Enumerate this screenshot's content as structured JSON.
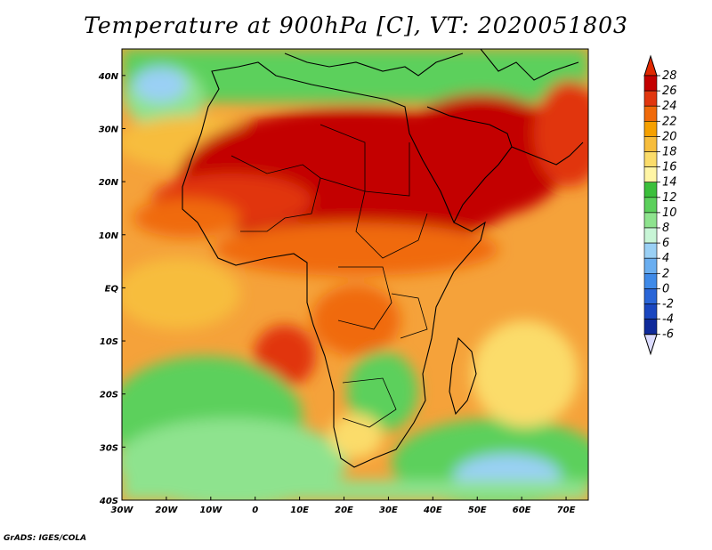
{
  "title": "Temperature at 900hPa [C], VT: 2020051803",
  "footer": "GrADS: IGES/COLA",
  "map": {
    "lat_labels": [
      "40N",
      "30N",
      "20N",
      "10N",
      "EQ",
      "10S",
      "20S",
      "30S",
      "40S"
    ],
    "lon_labels": [
      "30W",
      "20W",
      "10W",
      "0",
      "10E",
      "20E",
      "30E",
      "40E",
      "50E",
      "60E",
      "70E"
    ],
    "lat_range": [
      -40,
      45
    ],
    "lon_range": [
      -30,
      75
    ]
  },
  "colorbar": {
    "labels": [
      "28",
      "26",
      "24",
      "22",
      "20",
      "18",
      "16",
      "14",
      "12",
      "10",
      "8",
      "6",
      "4",
      "2",
      "0",
      "-2",
      "-4",
      "-6"
    ],
    "colors": [
      "#c30000",
      "#e1360f",
      "#f06a0a",
      "#f5a000",
      "#f7bd3c",
      "#fbdc6a",
      "#fff5a5",
      "#3bbf3b",
      "#5cd05c",
      "#8ee38e",
      "#c8f5d6",
      "#9ad0f5",
      "#6aaef0",
      "#3f8ae8",
      "#2a66d8",
      "#1a47c0",
      "#0f2a9a",
      "#0a146e"
    ],
    "top_color": "#e02800",
    "bottom_color": "#dcdcff"
  }
}
